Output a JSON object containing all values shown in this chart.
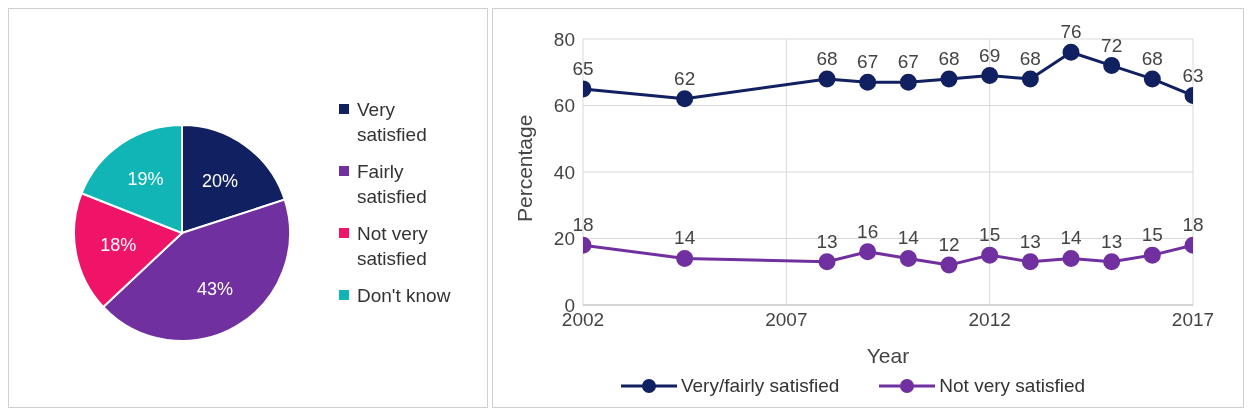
{
  "chart_data": [
    {
      "type": "pie",
      "categories": [
        "Very satisfied",
        "Fairly satisfied",
        "Not very satisfied",
        "Don't know"
      ],
      "values": [
        20,
        43,
        18,
        19
      ],
      "value_labels": [
        "20%",
        "43%",
        "18%",
        "19%"
      ],
      "colors": [
        "#112060",
        "#7030a0",
        "#f01468",
        "#12b5b5"
      ],
      "legend": "right"
    },
    {
      "type": "line",
      "x": [
        2002,
        2004.5,
        2008,
        2009,
        2010,
        2011,
        2012,
        2013,
        2014,
        2015,
        2016,
        2017
      ],
      "xlabel": "Year",
      "ylabel": "Percentage",
      "xlim": [
        2002,
        2017
      ],
      "xticks": [
        2002,
        2007,
        2012,
        2017
      ],
      "ylim": [
        0,
        80
      ],
      "yticks": [
        0,
        20,
        40,
        60,
        80
      ],
      "grid": true,
      "legend": "bottom",
      "marker": "circle",
      "data_labels": true,
      "series": [
        {
          "name": "Very/fairly satisfied",
          "color": "#112060",
          "values": [
            65,
            62,
            68,
            67,
            67,
            68,
            69,
            68,
            76,
            72,
            68,
            63
          ]
        },
        {
          "name": "Not very satisfied",
          "color": "#7030a0",
          "values": [
            18,
            14,
            13,
            16,
            14,
            12,
            15,
            13,
            14,
            13,
            15,
            18
          ]
        }
      ]
    }
  ]
}
